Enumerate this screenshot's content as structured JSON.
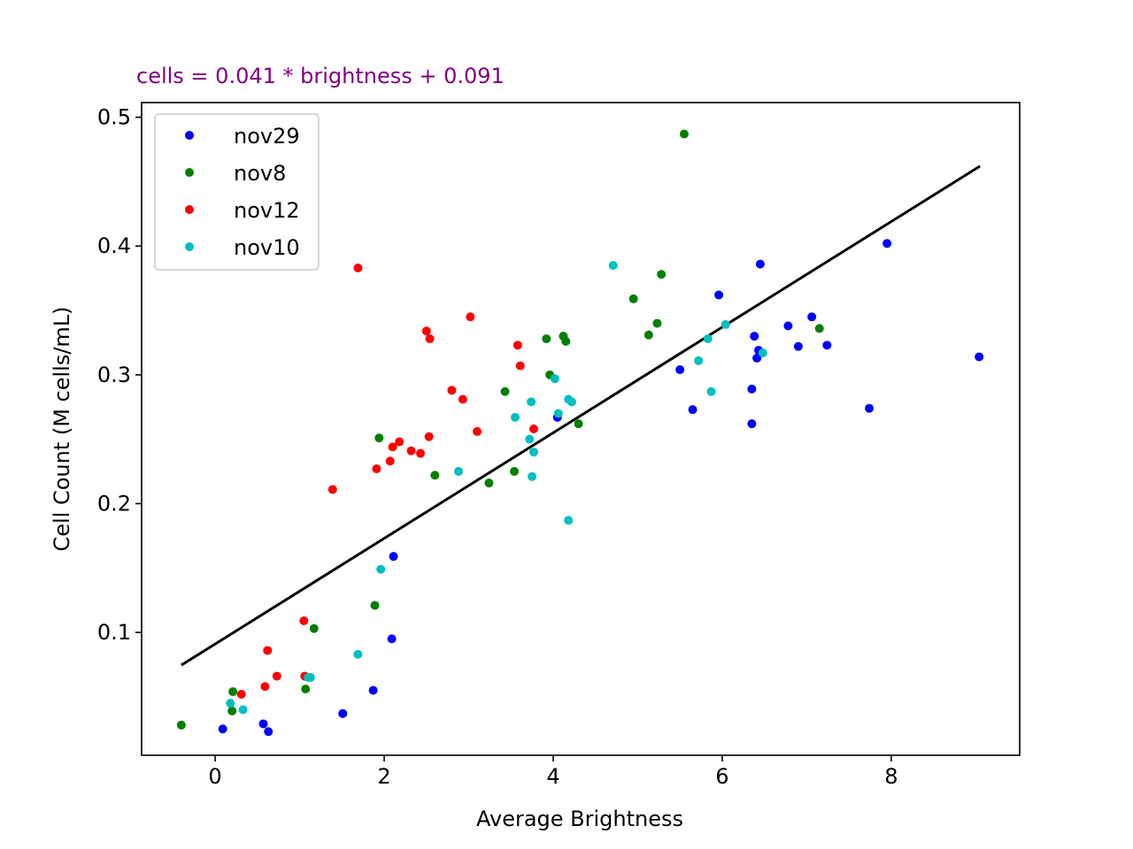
{
  "chart_data": {
    "type": "scatter",
    "title": "cells = 0.041 * brightness + 0.091",
    "title_color": "#800080",
    "xlabel": "Average Brightness",
    "ylabel": "Cell Count (M cells/mL)",
    "xlim": [
      -0.87,
      9.52
    ],
    "ylim": [
      0.0046,
      0.5114
    ],
    "xticks": [
      0,
      2,
      4,
      6,
      8
    ],
    "yticks": [
      0.1,
      0.2,
      0.3,
      0.4,
      0.5
    ],
    "xtick_labels": [
      "0",
      "2",
      "4",
      "6",
      "8"
    ],
    "ytick_labels": [
      "0.1",
      "0.2",
      "0.3",
      "0.4",
      "0.5"
    ],
    "grid": false,
    "legend_position": "upper-left",
    "fit_line": {
      "slope": 0.041,
      "intercept": 0.091,
      "x_range": [
        -0.4,
        9.05
      ],
      "color": "#000000"
    },
    "series": [
      {
        "name": "nov29",
        "color": "#0000ff",
        "points": [
          [
            0.09,
            0.025
          ],
          [
            0.57,
            0.029
          ],
          [
            0.63,
            0.023
          ],
          [
            1.51,
            0.037
          ],
          [
            1.87,
            0.055
          ],
          [
            2.09,
            0.095
          ],
          [
            2.11,
            0.159
          ],
          [
            4.05,
            0.267
          ],
          [
            5.5,
            0.304
          ],
          [
            5.65,
            0.273
          ],
          [
            5.96,
            0.362
          ],
          [
            6.35,
            0.262
          ],
          [
            6.35,
            0.289
          ],
          [
            6.38,
            0.33
          ],
          [
            6.41,
            0.313
          ],
          [
            6.43,
            0.319
          ],
          [
            6.45,
            0.386
          ],
          [
            6.78,
            0.338
          ],
          [
            6.9,
            0.322
          ],
          [
            7.06,
            0.345
          ],
          [
            7.24,
            0.323
          ],
          [
            7.74,
            0.274
          ],
          [
            7.95,
            0.402
          ],
          [
            9.04,
            0.314
          ]
        ]
      },
      {
        "name": "nov8",
        "color": "#008000",
        "points": [
          [
            -0.4,
            0.028
          ],
          [
            0.2,
            0.039
          ],
          [
            0.21,
            0.054
          ],
          [
            1.07,
            0.056
          ],
          [
            1.17,
            0.103
          ],
          [
            1.89,
            0.121
          ],
          [
            1.94,
            0.251
          ],
          [
            2.6,
            0.222
          ],
          [
            3.24,
            0.216
          ],
          [
            3.43,
            0.287
          ],
          [
            3.54,
            0.225
          ],
          [
            3.92,
            0.328
          ],
          [
            3.96,
            0.3
          ],
          [
            4.12,
            0.33
          ],
          [
            4.15,
            0.326
          ],
          [
            4.3,
            0.262
          ],
          [
            4.95,
            0.359
          ],
          [
            5.13,
            0.331
          ],
          [
            5.23,
            0.34
          ],
          [
            5.28,
            0.378
          ],
          [
            5.55,
            0.487
          ],
          [
            7.15,
            0.336
          ]
        ]
      },
      {
        "name": "nov12",
        "color": "#ff0000",
        "points": [
          [
            0.31,
            0.052
          ],
          [
            0.59,
            0.058
          ],
          [
            0.62,
            0.086
          ],
          [
            0.73,
            0.066
          ],
          [
            1.05,
            0.109
          ],
          [
            1.06,
            0.066
          ],
          [
            1.39,
            0.211
          ],
          [
            1.69,
            0.383
          ],
          [
            1.91,
            0.227
          ],
          [
            2.07,
            0.233
          ],
          [
            2.1,
            0.244
          ],
          [
            2.18,
            0.248
          ],
          [
            2.32,
            0.241
          ],
          [
            2.43,
            0.239
          ],
          [
            2.5,
            0.334
          ],
          [
            2.53,
            0.252
          ],
          [
            2.54,
            0.328
          ],
          [
            2.8,
            0.288
          ],
          [
            2.93,
            0.281
          ],
          [
            3.02,
            0.345
          ],
          [
            3.1,
            0.256
          ],
          [
            3.58,
            0.323
          ],
          [
            3.61,
            0.307
          ],
          [
            3.77,
            0.258
          ]
        ]
      },
      {
        "name": "nov10",
        "color": "#00bfbf",
        "points": [
          [
            0.18,
            0.045
          ],
          [
            0.33,
            0.04
          ],
          [
            1.1,
            0.065
          ],
          [
            1.13,
            0.065
          ],
          [
            1.69,
            0.083
          ],
          [
            1.96,
            0.149
          ],
          [
            2.88,
            0.225
          ],
          [
            3.55,
            0.267
          ],
          [
            3.72,
            0.25
          ],
          [
            3.74,
            0.279
          ],
          [
            3.75,
            0.221
          ],
          [
            3.77,
            0.24
          ],
          [
            4.02,
            0.297
          ],
          [
            4.06,
            0.27
          ],
          [
            4.18,
            0.187
          ],
          [
            4.18,
            0.281
          ],
          [
            4.22,
            0.279
          ],
          [
            4.71,
            0.385
          ],
          [
            5.72,
            0.311
          ],
          [
            5.83,
            0.328
          ],
          [
            5.87,
            0.287
          ],
          [
            6.04,
            0.339
          ],
          [
            6.48,
            0.317
          ]
        ]
      }
    ]
  }
}
